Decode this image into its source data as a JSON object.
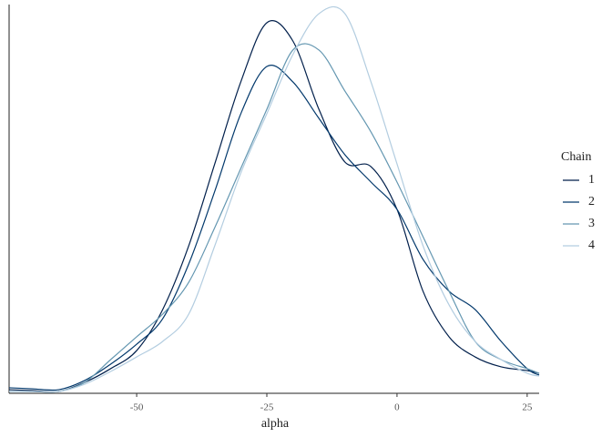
{
  "chart_data": {
    "type": "line",
    "x_label": "alpha",
    "legend_title": "Chain",
    "legend": "right",
    "x": [
      -74.5,
      -70,
      -65,
      -60,
      -55,
      -50,
      -45,
      -40,
      -35,
      -30,
      -25,
      -20,
      -15,
      -10,
      -5,
      0,
      5,
      10,
      15,
      20,
      25,
      27.3
    ],
    "xlim": [
      -74.5,
      27.3
    ],
    "xticks": [
      -50,
      -25,
      0,
      25
    ],
    "ylim": [
      0,
      0.03
    ],
    "series": [
      {
        "name": "1",
        "color": "#011f4b",
        "values": [
          0.00014,
          7e-05,
          0,
          0.00071,
          0.00179,
          0.00321,
          0.00643,
          0.01143,
          0.01786,
          0.02429,
          0.02893,
          0.0275,
          0.02214,
          0.018,
          0.01764,
          0.01429,
          0.00786,
          0.00429,
          0.00271,
          0.00193,
          0.00164,
          0.00143
        ]
      },
      {
        "name": "2",
        "color": "#03396c",
        "values": [
          0.00029,
          0.00021,
          0.00014,
          0.00086,
          0.00214,
          0.00371,
          0.00571,
          0.01,
          0.01571,
          0.02179,
          0.0255,
          0.02429,
          0.02143,
          0.01857,
          0.01643,
          0.01429,
          0.01036,
          0.00786,
          0.00643,
          0.00393,
          0.00179,
          0.00129
        ]
      },
      {
        "name": "3",
        "color": "#6497b1",
        "values": [
          0,
          0,
          0,
          0.00071,
          0.0025,
          0.00429,
          0.00607,
          0.00857,
          0.01286,
          0.0175,
          0.02214,
          0.02679,
          0.02679,
          0.02357,
          0.02036,
          0.01643,
          0.01214,
          0.00786,
          0.00393,
          0.0025,
          0.00179,
          0.00143
        ]
      },
      {
        "name": "4",
        "color": "#b3cde0",
        "values": [
          0,
          0,
          0,
          0.00057,
          0.00157,
          0.00271,
          0.00393,
          0.00607,
          0.01143,
          0.01714,
          0.02179,
          0.02643,
          0.02964,
          0.02964,
          0.02429,
          0.01786,
          0.01143,
          0.00679,
          0.00393,
          0.0025,
          0.00143,
          0.00121
        ]
      }
    ]
  }
}
